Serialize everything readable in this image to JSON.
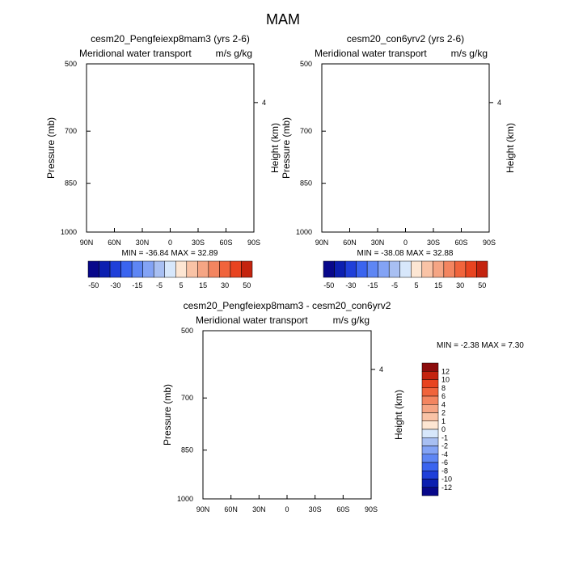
{
  "figure_title": "MAM",
  "colors": {
    "neg": [
      "#08088a",
      "#0c1fb0",
      "#1f3fd9",
      "#3a64ef",
      "#5e86f4",
      "#83a3f5",
      "#a8bff2",
      "#d7e7fb"
    ],
    "pos": [
      "#fde6d3",
      "#f9c3a6",
      "#f5a584",
      "#f38560",
      "#f0643c",
      "#e84420",
      "#c4240f",
      "#8c0c0c"
    ],
    "diff_neg": [
      "#d7e7fb",
      "#a8bff2",
      "#83a3f5",
      "#5e86f4",
      "#3a64ef",
      "#1f3fd9",
      "#0c1fb0",
      "#08088a"
    ],
    "diff_pos": [
      "#fde6d3",
      "#f9c3a6",
      "#f5a584",
      "#f38560",
      "#f0643c",
      "#e84420",
      "#c4240f",
      "#8c0c0c"
    ]
  },
  "chart_data": [
    {
      "type": "heatmap",
      "title": "cesm20_Pengfeiexp8mam3 (yrs 2-6)",
      "left_subtitle": "Meridional water transport",
      "right_subtitle": "m/s g/kg",
      "ylabel": "Pressure (mb)",
      "ylabel_right": "Height (km)",
      "x_ticks": [
        "90N",
        "60N",
        "30N",
        "0",
        "30S",
        "60S",
        "90S"
      ],
      "y_ticks": [
        "500",
        "700",
        "850",
        "1000"
      ],
      "right_ticks": [
        "4"
      ],
      "min_max_text": "MIN = -36.84  MAX =  32.89",
      "colorbar_labels": [
        "-50",
        "-30",
        "-15",
        "-5",
        "5",
        "15",
        "30",
        "50"
      ],
      "colorbar_levels": [
        -50,
        -40,
        -30,
        -20,
        -15,
        -10,
        -5,
        0,
        5,
        10,
        15,
        20,
        30,
        40,
        50
      ]
    },
    {
      "type": "heatmap",
      "title": "cesm20_con6yrv2 (yrs 2-6)",
      "left_subtitle": "Meridional water transport",
      "right_subtitle": "m/s g/kg",
      "ylabel": "Pressure (mb)",
      "ylabel_right": "Height (km)",
      "x_ticks": [
        "90N",
        "60N",
        "30N",
        "0",
        "30S",
        "60S",
        "90S"
      ],
      "y_ticks": [
        "500",
        "700",
        "850",
        "1000"
      ],
      "right_ticks": [
        "4"
      ],
      "min_max_text": "MIN = -38.08  MAX =  32.88",
      "colorbar_labels": [
        "-50",
        "-30",
        "-15",
        "-5",
        "5",
        "15",
        "30",
        "50"
      ],
      "colorbar_levels": [
        -50,
        -40,
        -30,
        -20,
        -15,
        -10,
        -5,
        0,
        5,
        10,
        15,
        20,
        30,
        40,
        50
      ]
    },
    {
      "type": "heatmap",
      "title": "cesm20_Pengfeiexp8mam3 - cesm20_con6yrv2",
      "left_subtitle": "Meridional water transport",
      "right_subtitle": "m/s g/kg",
      "ylabel": "Pressure (mb)",
      "ylabel_right": "Height (km)",
      "x_ticks": [
        "90N",
        "60N",
        "30N",
        "0",
        "30S",
        "60S",
        "90S"
      ],
      "y_ticks": [
        "500",
        "700",
        "850",
        "1000"
      ],
      "right_ticks": [
        "4"
      ],
      "min_max_text": "MIN =  -2.38  MAX =   7.30",
      "colorbar_labels": [
        "12",
        "10",
        "8",
        "6",
        "4",
        "2",
        "1",
        "0",
        "-1",
        "-2",
        "-4",
        "-6",
        "-8",
        "-10",
        "-12"
      ],
      "colorbar_levels": [
        -12,
        -10,
        -8,
        -6,
        -4,
        -2,
        -1,
        0,
        1,
        2,
        4,
        6,
        8,
        10,
        12
      ]
    }
  ]
}
